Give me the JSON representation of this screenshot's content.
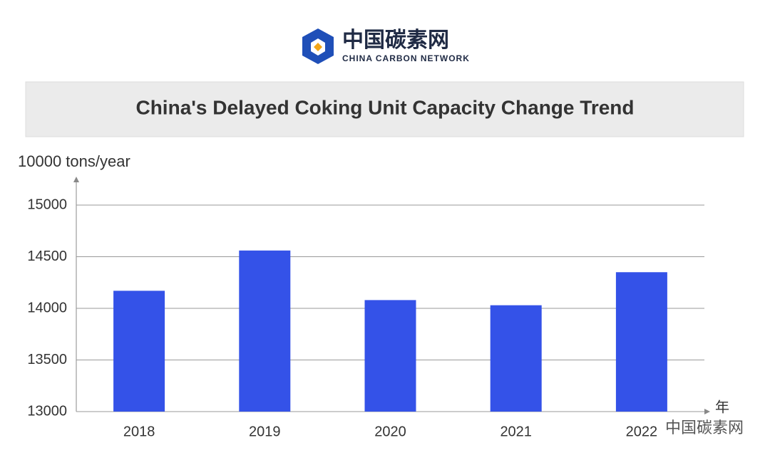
{
  "header": {
    "logo_text": "中国碳素网",
    "logo_subtext": "CHINA CARBON NETWORK"
  },
  "chart_data": {
    "type": "bar",
    "title": "China's Delayed Coking Unit Capacity Change Trend",
    "y_label": "10000 tons/year",
    "x_label": "年",
    "categories": [
      "2018",
      "2019",
      "2020",
      "2021",
      "2022"
    ],
    "values": [
      14170,
      14560,
      14080,
      14030,
      14350
    ],
    "color": "#3452e8",
    "ylim": [
      13000,
      15000
    ],
    "yticks": [
      13000,
      13500,
      14000,
      14500,
      15000
    ],
    "grid": true
  },
  "footer": {
    "watermark": "中国碳素网"
  }
}
